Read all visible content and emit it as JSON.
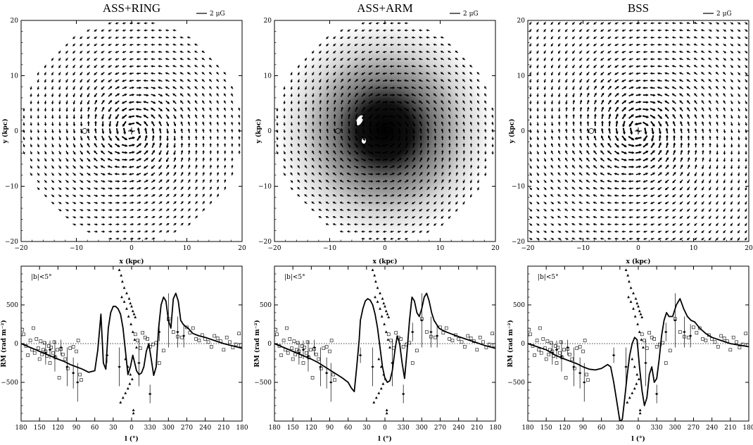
{
  "chart_data": [
    {
      "type": "scatter",
      "title": "ASS+RING",
      "scale_label": "2 μG",
      "xlabel": "x (kpc)",
      "ylabel": "y (kpc)",
      "xlim": [
        -20,
        20
      ],
      "ylim": [
        -20,
        20
      ],
      "xticks": [
        -20,
        -10,
        0,
        10,
        20
      ],
      "yticks": [
        -20,
        -10,
        0,
        10,
        20
      ],
      "field_model": "axisymmetric spiral with reversal ring",
      "field_extent_kpc": 20,
      "field_region": "disk",
      "background_shading": false,
      "sun_position_kpc": [
        -8.5,
        0
      ],
      "galactic_center_kpc": [
        0,
        0
      ]
    },
    {
      "type": "scatter",
      "title": "ASS+ARM",
      "scale_label": "2 μG",
      "xlabel": "x (kpc)",
      "ylabel": "y (kpc)",
      "xlim": [
        -20,
        20
      ],
      "ylim": [
        -20,
        20
      ],
      "xticks": [
        -20,
        -10,
        0,
        10,
        20
      ],
      "yticks": [
        -20,
        -10,
        0,
        10,
        20
      ],
      "field_model": "axisymmetric spiral with reversal arm",
      "field_extent_kpc": 20,
      "field_region": "disk",
      "background_shading": true,
      "sun_position_kpc": [
        -8.5,
        0
      ],
      "galactic_center_kpc": [
        0,
        0
      ]
    },
    {
      "type": "scatter",
      "title": "BSS",
      "scale_label": "2 μG",
      "xlabel": "x (kpc)",
      "ylabel": "y (kpc)",
      "xlim": [
        -20,
        20
      ],
      "ylim": [
        -20,
        20
      ],
      "xticks": [
        -20,
        -10,
        0,
        10,
        20
      ],
      "yticks": [
        -20,
        -10,
        0,
        10,
        20
      ],
      "field_model": "bisymmetric spiral",
      "field_extent_kpc": 20,
      "field_region": "square",
      "background_shading": false,
      "sun_position_kpc": [
        -8.5,
        0
      ],
      "galactic_center_kpc": [
        0,
        0
      ]
    },
    {
      "type": "line",
      "annotation": "|b|<5°",
      "xlabel": "l (°)",
      "ylabel": "RM (rad m⁻²)",
      "xticklabels": [
        "180",
        "150",
        "120",
        "90",
        "60",
        "30",
        "0",
        "330",
        "300",
        "270",
        "240",
        "210",
        "180"
      ],
      "yticks": [
        -500,
        0,
        500
      ],
      "ylim": [
        -1000,
        1000
      ],
      "zero_line": "dotted",
      "model_curve": {
        "x": [
          180,
          165,
          150,
          135,
          120,
          110,
          100,
          90,
          80,
          70,
          60,
          55,
          50,
          46,
          42,
          38,
          34,
          30,
          26,
          22,
          18,
          14,
          10,
          6,
          2,
          -2,
          -5,
          -8,
          -12,
          -16,
          -20,
          -24,
          -28,
          -32,
          -36,
          -40,
          -44,
          -48,
          -52,
          -56,
          -60,
          -64,
          -68,
          -72,
          -76,
          -80,
          -84,
          -88,
          -92,
          -100,
          -110,
          -120,
          -135,
          -150,
          -165,
          -180
        ],
        "y": [
          0,
          -50,
          -100,
          -150,
          -200,
          -230,
          -270,
          -300,
          -330,
          -370,
          -350,
          -80,
          380,
          -250,
          -330,
          200,
          400,
          480,
          480,
          450,
          380,
          200,
          -100,
          -400,
          -300,
          -150,
          -250,
          -350,
          -400,
          -380,
          -300,
          -100,
          0,
          -200,
          -410,
          -300,
          200,
          500,
          600,
          550,
          300,
          200,
          580,
          650,
          550,
          300,
          250,
          220,
          200,
          130,
          100,
          80,
          40,
          0,
          -30,
          -60
        ]
      },
      "pulsar_points": {
        "x": [
          20,
          17,
          15,
          12,
          8,
          4,
          2,
          0,
          -2,
          -4,
          -6,
          18,
          14,
          10,
          6,
          3,
          -1,
          -3,
          16,
          12,
          8,
          5,
          1,
          -2,
          -5,
          -8,
          10,
          6,
          2,
          -3
        ],
        "y": [
          950,
          880,
          800,
          720,
          650,
          580,
          520,
          480,
          420,
          380,
          340,
          -760,
          -700,
          -640,
          -580,
          -520,
          -460,
          -860,
          600,
          540,
          450,
          350,
          250,
          150,
          50,
          -50,
          -200,
          -300,
          -400,
          -900
        ]
      }
    },
    {
      "type": "line",
      "annotation": "|b|<5°",
      "xlabel": "l (°)",
      "ylabel": "RM (rad m⁻²)",
      "xticklabels": [
        "180",
        "150",
        "120",
        "90",
        "60",
        "30",
        "0",
        "330",
        "300",
        "270",
        "240",
        "210",
        "180"
      ],
      "yticks": [
        -500,
        0,
        500
      ],
      "ylim": [
        -1000,
        1000
      ],
      "zero_line": "dotted",
      "model_curve": {
        "x": [
          180,
          165,
          150,
          135,
          120,
          110,
          100,
          90,
          80,
          70,
          60,
          55,
          50,
          46,
          42,
          40,
          36,
          32,
          28,
          24,
          20,
          16,
          12,
          8,
          4,
          0,
          -4,
          -8,
          -12,
          -16,
          -20,
          -24,
          -28,
          -32,
          -36,
          -40,
          -44,
          -48,
          -52,
          -56,
          -60,
          -64,
          -68,
          -72,
          -76,
          -80,
          -84,
          -88,
          -92,
          -100,
          -110,
          -120,
          -135,
          -150,
          -165,
          -180
        ],
        "y": [
          0,
          -50,
          -100,
          -150,
          -200,
          -240,
          -290,
          -340,
          -390,
          -440,
          -500,
          -570,
          -620,
          -300,
          50,
          300,
          450,
          550,
          580,
          560,
          500,
          380,
          200,
          -50,
          -300,
          -450,
          -500,
          -480,
          -350,
          -100,
          100,
          0,
          -250,
          -450,
          -100,
          300,
          600,
          550,
          400,
          350,
          450,
          600,
          650,
          550,
          400,
          300,
          250,
          200,
          180,
          150,
          120,
          90,
          50,
          10,
          -30,
          -60
        ]
      },
      "pulsar_points": {
        "x": [
          20,
          17,
          15,
          12,
          8,
          4,
          2,
          0,
          -2,
          -4,
          -6,
          18,
          14,
          10,
          6,
          3,
          -1,
          -3,
          16,
          12,
          8,
          5,
          1,
          -2,
          -5,
          -8,
          10,
          6,
          2,
          -3
        ],
        "y": [
          950,
          880,
          800,
          720,
          650,
          580,
          520,
          480,
          420,
          380,
          340,
          -760,
          -700,
          -640,
          -580,
          -520,
          -460,
          -860,
          600,
          540,
          450,
          350,
          250,
          150,
          50,
          -50,
          -200,
          -300,
          -400,
          -900
        ]
      }
    },
    {
      "type": "line",
      "annotation": "|b|<5°",
      "xlabel": "l (°)",
      "ylabel": "RM (rad m⁻²)",
      "xticklabels": [
        "180",
        "150",
        "120",
        "90",
        "60",
        "30",
        "0",
        "330",
        "300",
        "270",
        "240",
        "210",
        "180"
      ],
      "yticks": [
        -500,
        0,
        500
      ],
      "ylim": [
        -1000,
        1000
      ],
      "zero_line": "dotted",
      "model_curve": {
        "x": [
          180,
          165,
          150,
          135,
          120,
          110,
          100,
          90,
          80,
          70,
          60,
          50,
          45,
          40,
          35,
          30,
          26,
          22,
          18,
          14,
          10,
          6,
          2,
          -2,
          -6,
          -10,
          -14,
          -18,
          -22,
          -26,
          -30,
          -34,
          -38,
          -42,
          -46,
          -50,
          -56,
          -62,
          -68,
          -74,
          -80,
          -86,
          -92,
          -100,
          -110,
          -120,
          -135,
          -150,
          -165,
          -180
        ],
        "y": [
          0,
          -40,
          -80,
          -150,
          -200,
          -230,
          -260,
          -300,
          -330,
          -340,
          -320,
          -270,
          -300,
          -500,
          -750,
          -1000,
          -980,
          -700,
          -400,
          -150,
          0,
          80,
          50,
          -300,
          -600,
          -800,
          -700,
          -400,
          -300,
          -500,
          -450,
          -200,
          100,
          300,
          400,
          350,
          350,
          500,
          580,
          450,
          350,
          300,
          280,
          200,
          130,
          80,
          40,
          0,
          -20,
          -40
        ]
      },
      "pulsar_points": {
        "x": [
          20,
          17,
          15,
          12,
          8,
          4,
          2,
          0,
          -2,
          -4,
          -6,
          18,
          14,
          10,
          6,
          3,
          -1,
          -3,
          16,
          12,
          8,
          5,
          1,
          -2,
          -5,
          -8,
          10,
          6,
          2,
          -3
        ],
        "y": [
          950,
          880,
          800,
          720,
          650,
          580,
          520,
          480,
          420,
          380,
          340,
          -760,
          -700,
          -640,
          -580,
          -520,
          -460,
          -860,
          600,
          540,
          450,
          350,
          250,
          150,
          50,
          -50,
          -200,
          -300,
          -400,
          -900
        ]
      }
    }
  ],
  "rm_observations": {
    "squares": {
      "x": [
        178,
        176,
        172,
        169,
        165,
        162,
        160,
        158,
        155,
        152,
        150,
        148,
        146,
        144,
        142,
        140,
        138,
        135,
        133,
        131,
        128,
        126,
        124,
        121,
        118,
        115,
        112,
        108,
        104,
        100,
        95,
        90,
        87,
        84,
        82,
        -6,
        -10,
        -14,
        -18,
        -22,
        -26,
        -30,
        -35,
        -40,
        -45,
        -52,
        -60,
        -68,
        -75,
        -82,
        -90,
        -95,
        -100,
        -105,
        -110,
        -115,
        -120,
        -125,
        -130,
        -135,
        -140,
        -145,
        -150,
        -155,
        -160,
        -165,
        -170,
        -175,
        -178
      ],
      "y": [
        180,
        120,
        -30,
        -150,
        40,
        -80,
        200,
        -120,
        60,
        -60,
        -200,
        30,
        -140,
        -80,
        10,
        -100,
        -160,
        -30,
        -250,
        -50,
        -120,
        20,
        -180,
        -80,
        -440,
        -70,
        -140,
        -200,
        -320,
        -60,
        -40,
        -100,
        40,
        -400,
        -470,
        120,
        40,
        -60,
        140,
        80,
        60,
        -40,
        -10,
        10,
        -250,
        -90,
        320,
        150,
        90,
        80,
        210,
        140,
        200,
        60,
        40,
        110,
        60,
        20,
        -40,
        100,
        70,
        30,
        -80,
        80,
        20,
        -50,
        -10,
        130,
        -20
      ]
    },
    "error_bars": {
      "x": [
        140,
        133,
        125,
        115,
        105,
        95,
        88,
        40,
        20,
        -12,
        -30,
        -45,
        -60,
        -75,
        -85
      ],
      "y": [
        -120,
        -80,
        -160,
        -50,
        -300,
        -380,
        -500,
        -150,
        -300,
        -250,
        -650,
        150,
        300,
        150,
        100
      ],
      "err": [
        150,
        120,
        200,
        100,
        250,
        200,
        250,
        100,
        250,
        300,
        120,
        120,
        350,
        200,
        150
      ]
    }
  }
}
